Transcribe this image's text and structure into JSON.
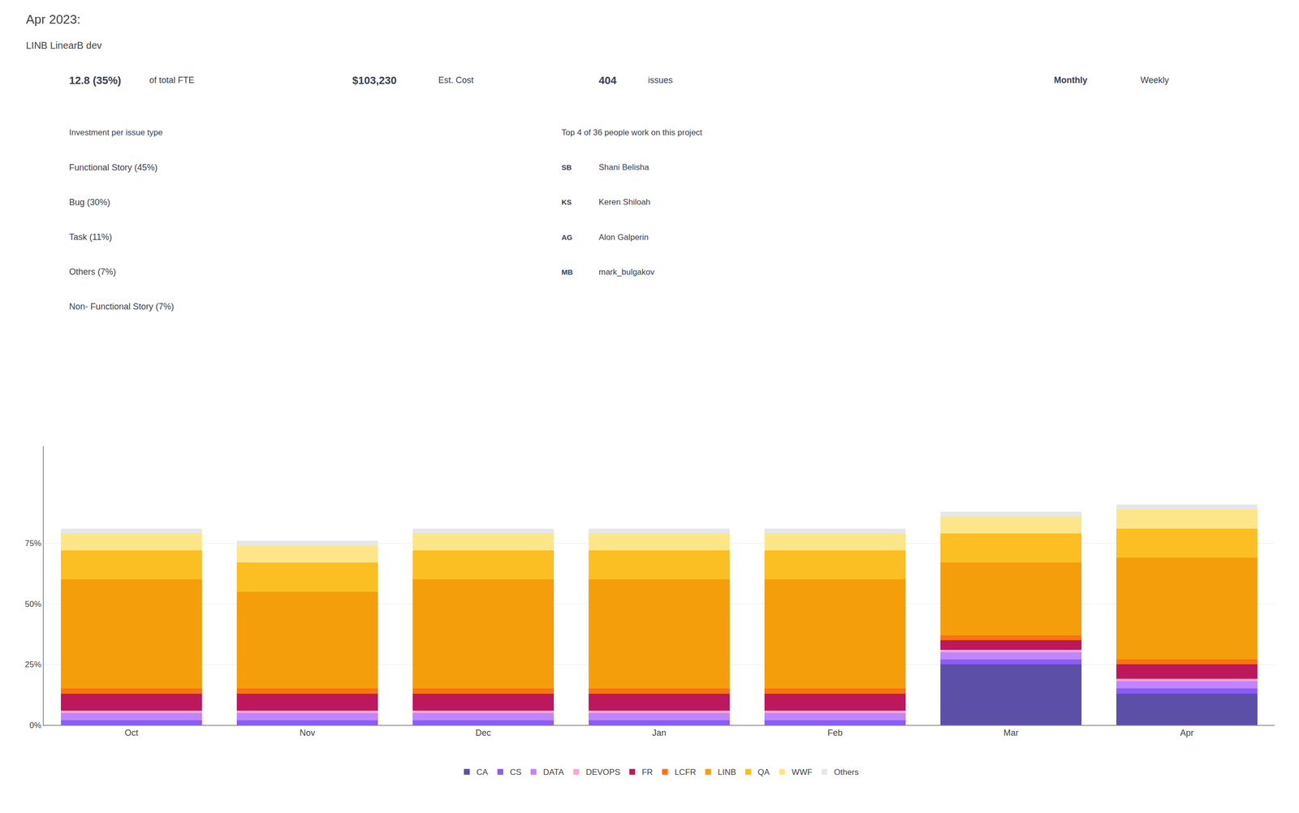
{
  "chart_data": {
    "type": "bar",
    "title": "Apr 2023:",
    "subtitle": "LINB LinearB dev",
    "annotations": [
      "12.8 (35%)",
      "of total FTE",
      "$103,230",
      "Est. Cost",
      "404",
      "issues",
      "Investment per issue type",
      "Functional Story (45%)",
      "Bug (30%)",
      "Task (11%)",
      "Others (7%)",
      "Non- Functional Story (7%)",
      "Top 4 of 36 people work on this project",
      "SB",
      "Shani Belisha",
      "KS",
      "Keren Shiloah",
      "AG",
      "Alon Galperin",
      "MB",
      "mark_bulgakov",
      "Monthly",
      "Weekly"
    ],
    "categories": [
      "Oct",
      "Nov",
      "Dec",
      "Jan",
      "Feb",
      "Mar",
      "Apr"
    ],
    "series": [
      {
        "name": "CA",
        "color": "#5c4fa8",
        "values": [
          0,
          0,
          0,
          0,
          0,
          0.25,
          0.13
        ]
      },
      {
        "name": "CS",
        "color": "#8b5cf6",
        "values": [
          0.02,
          0.02,
          0.02,
          0.02,
          0.02,
          0.02,
          0.02
        ]
      },
      {
        "name": "DATA",
        "color": "#c084fc",
        "values": [
          0.03,
          0.03,
          0.03,
          0.03,
          0.03,
          0.03,
          0.03
        ]
      },
      {
        "name": "DEVOPS",
        "color": "#f9a8d4",
        "values": [
          0.01,
          0.01,
          0.01,
          0.01,
          0.01,
          0.01,
          0.01
        ]
      },
      {
        "name": "FR",
        "color": "#be185d",
        "values": [
          0.07,
          0.07,
          0.07,
          0.07,
          0.07,
          0.04,
          0.06
        ]
      },
      {
        "name": "LCFR",
        "color": "#f97316",
        "values": [
          0.02,
          0.02,
          0.02,
          0.02,
          0.02,
          0.02,
          0.02
        ]
      },
      {
        "name": "LINB",
        "color": "#f59e0b",
        "values": [
          0.45,
          0.4,
          0.45,
          0.45,
          0.45,
          0.3,
          0.42
        ]
      },
      {
        "name": "QA",
        "color": "#fbbf24",
        "values": [
          0.12,
          0.12,
          0.12,
          0.12,
          0.12,
          0.12,
          0.12
        ]
      },
      {
        "name": "WWF",
        "color": "#fde68a",
        "values": [
          0.07,
          0.07,
          0.07,
          0.07,
          0.07,
          0.07,
          0.08
        ]
      },
      {
        "name": "Others",
        "color": "#e5e7eb",
        "values": [
          0.02,
          0.02,
          0.02,
          0.02,
          0.02,
          0.02,
          0.02
        ]
      }
    ],
    "stacked": true,
    "ylim": [
      0,
      1.15
    ],
    "yticks": [
      {
        "value": 0,
        "label": "0%"
      },
      {
        "value": 0.25,
        "label": "25%"
      },
      {
        "value": 0.5,
        "label": "50%"
      },
      {
        "value": 0.75,
        "label": "75%"
      }
    ],
    "grid": true,
    "legend": "bottom"
  }
}
